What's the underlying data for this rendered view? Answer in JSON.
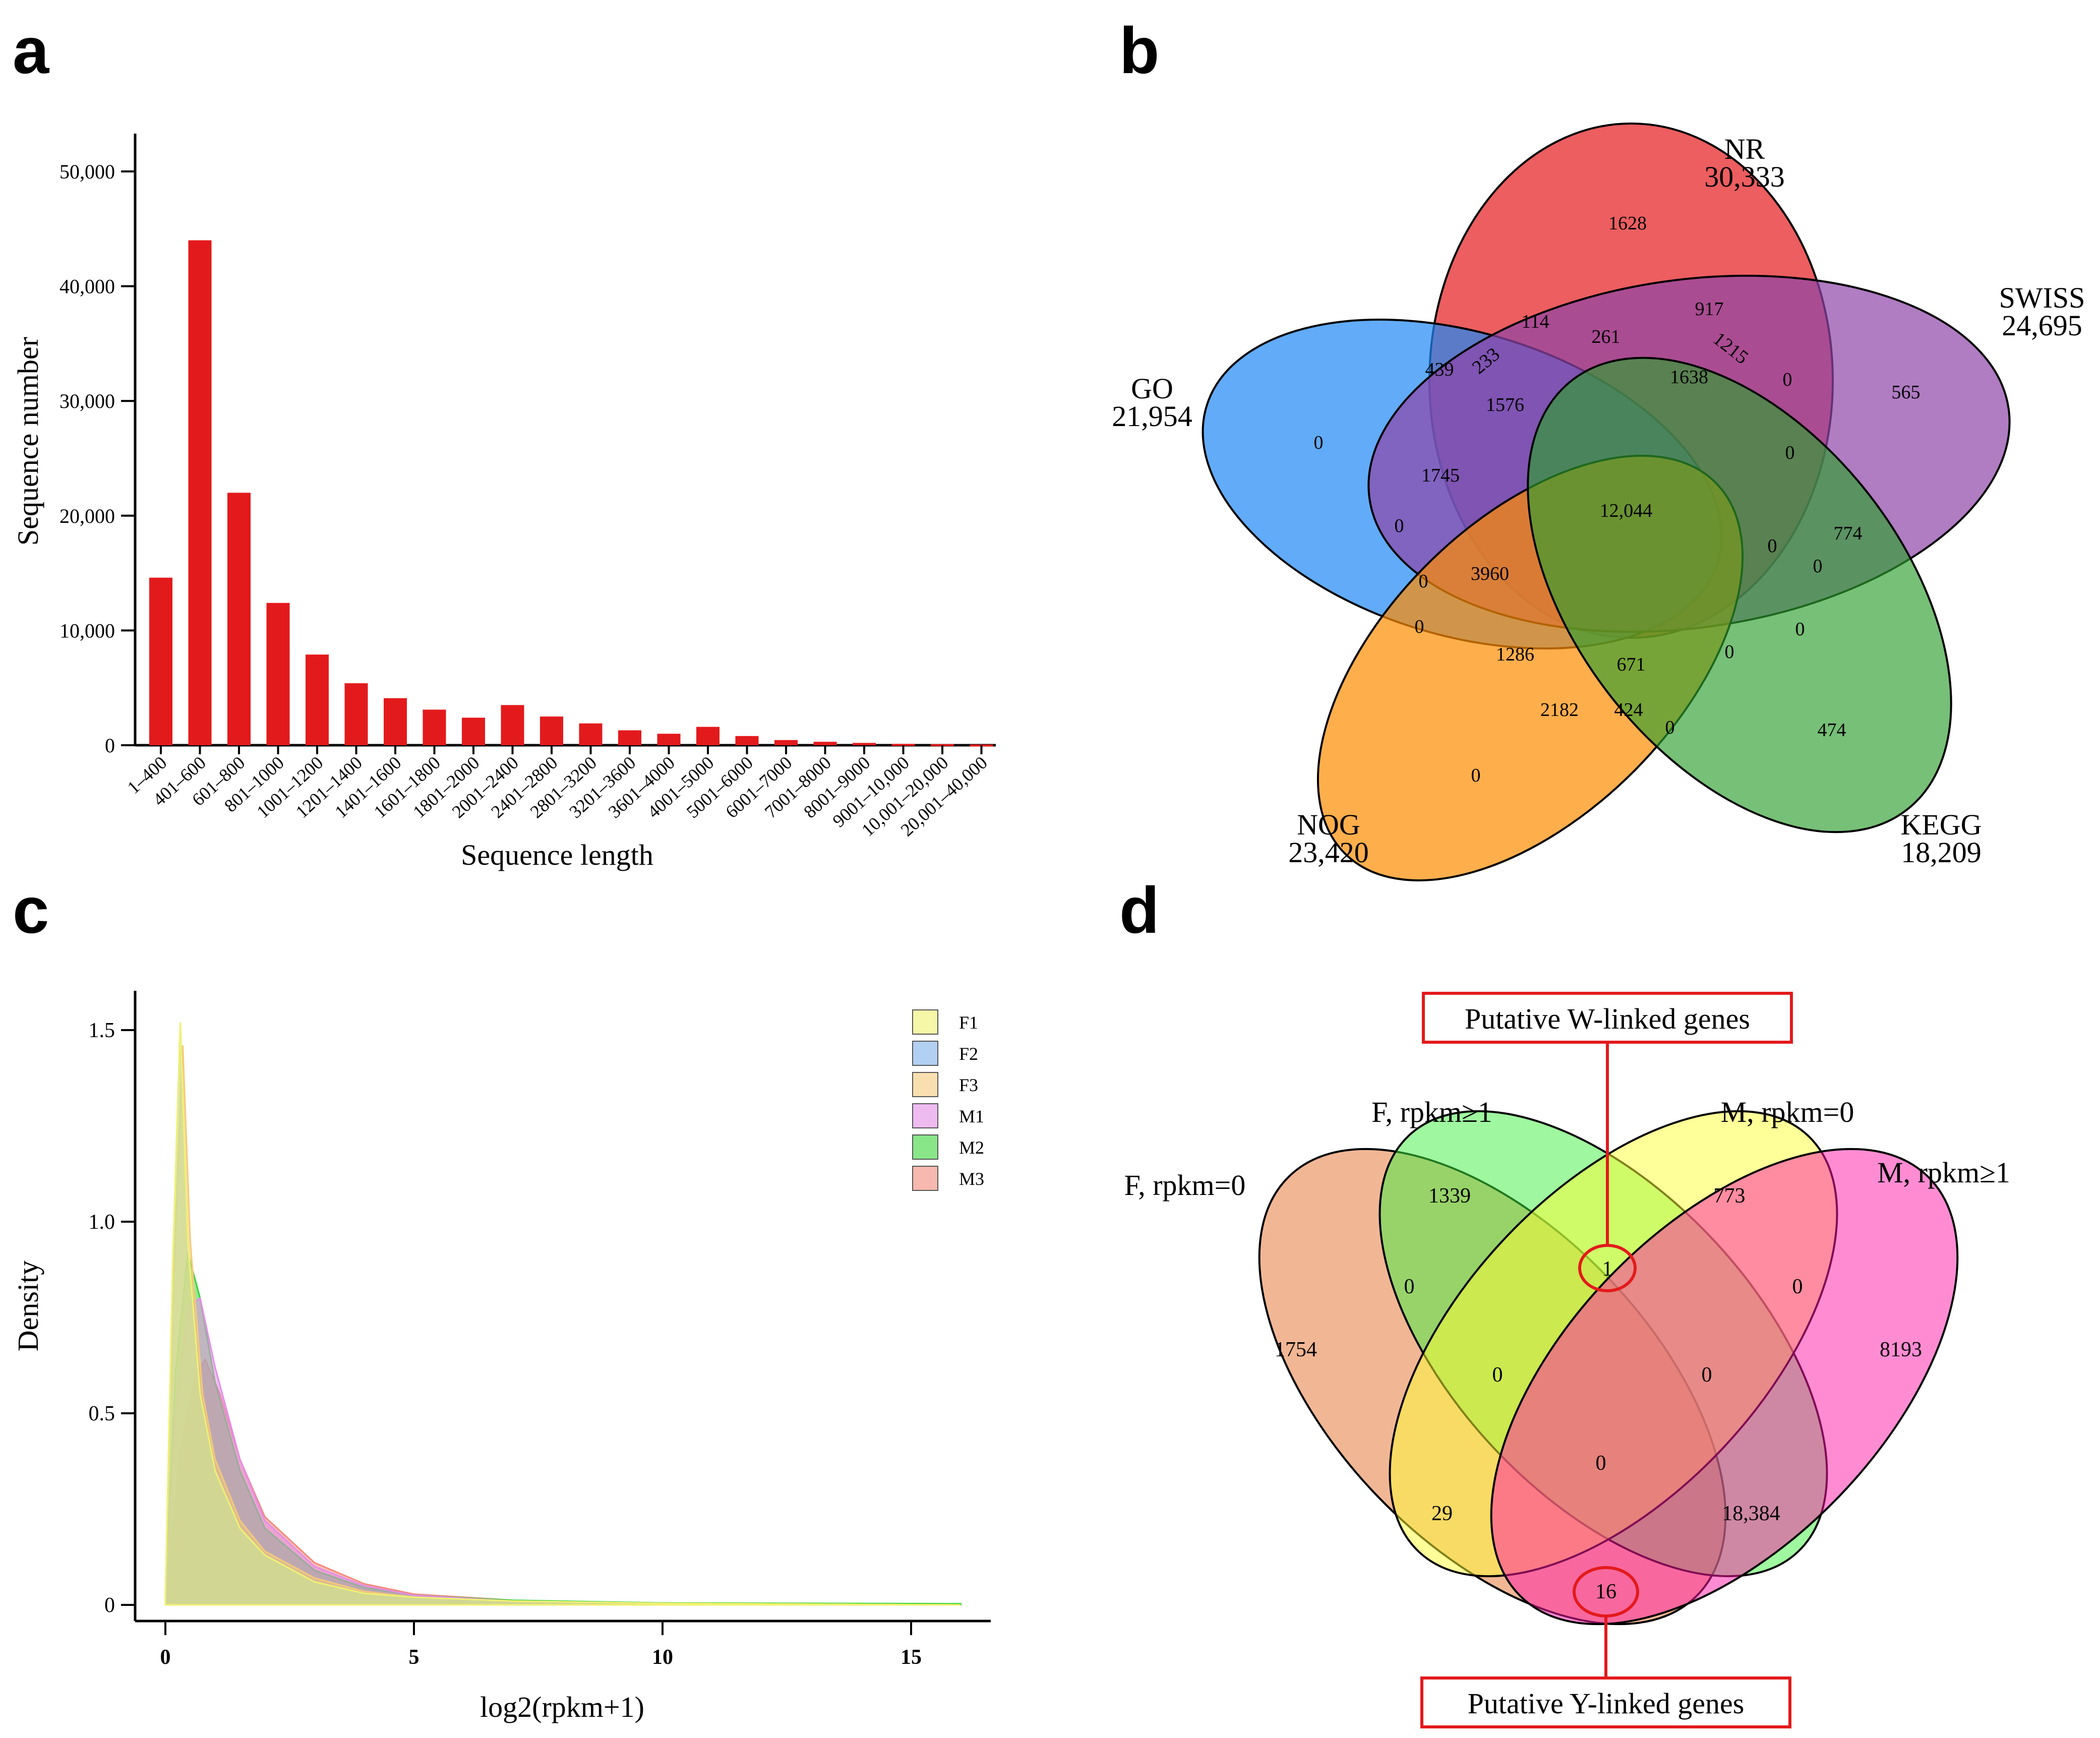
{
  "panel_letters": {
    "a": "a",
    "b": "b",
    "c": "c",
    "d": "d"
  },
  "colors": {
    "bar": "#e31a1c",
    "venn_b": {
      "nr": "#e41a1c",
      "go": "#1e88f5",
      "swiss": "#8e44a8",
      "nog": "#ff8c00",
      "kegg": "#2e9e2e"
    },
    "venn_d": {
      "f0": "#e8874f",
      "f1": "#3ff03f",
      "m0": "#ffff33",
      "m1": "#ff1aa8"
    },
    "density": {
      "F1": "#f2f26e",
      "F2": "#7fb0ea",
      "F3": "#f5c97a",
      "M1": "#e38de8",
      "M2": "#38d638",
      "M3": "#f28a7a"
    },
    "callout": "#e31a1c"
  },
  "chart_data": [
    {
      "type": "bar",
      "panel": "a",
      "xlabel": "Sequence length",
      "ylabel": "Sequence number",
      "ylim": [
        0,
        50000
      ],
      "yticks": [
        0,
        10000,
        20000,
        30000,
        40000,
        50000
      ],
      "ytick_labels": [
        "0",
        "10,000",
        "20,000",
        "30,000",
        "40,000",
        "50,000"
      ],
      "categories": [
        "1–400",
        "401–600",
        "601–800",
        "801–1000",
        "1001–1200",
        "1201–1400",
        "1401–1600",
        "1601–1800",
        "1801–2000",
        "2001–2400",
        "2401–2800",
        "2801–3200",
        "3201–3600",
        "3601–4000",
        "4001–5000",
        "5001–6000",
        "6001–7000",
        "7001–8000",
        "8001–9000",
        "9001–10,000",
        "10,001–20,000",
        "20,001–40,000"
      ],
      "values": [
        14600,
        44000,
        22000,
        12400,
        7900,
        5400,
        4100,
        3100,
        2400,
        3500,
        2500,
        1900,
        1300,
        1000,
        1600,
        800,
        450,
        300,
        200,
        120,
        100,
        60
      ]
    },
    {
      "type": "venn",
      "panel": "b",
      "sets": [
        {
          "key": "nr",
          "name": "NR",
          "total": "30,333"
        },
        {
          "key": "swiss",
          "name": "SWISS",
          "total": "24,695"
        },
        {
          "key": "go",
          "name": "GO",
          "total": "21,954"
        },
        {
          "key": "nog",
          "name": "NOG",
          "total": "23,420"
        },
        {
          "key": "kegg",
          "name": "KEGG",
          "total": "18,209"
        }
      ],
      "regions": [
        "1628",
        "917",
        "114",
        "261",
        "1215",
        "439",
        "233",
        "1638",
        "0",
        "565",
        "0",
        "1576",
        "0",
        "1745",
        "12,044",
        "0",
        "774",
        "0",
        "0",
        "3960",
        "0",
        "0",
        "0",
        "1286",
        "671",
        "0",
        "2182",
        "424",
        "0",
        "474",
        "0"
      ]
    },
    {
      "type": "area",
      "panel": "c",
      "xlabel": "log2(rpkm+1)",
      "ylabel": "Density",
      "xlim": [
        -1,
        16.5
      ],
      "ylim": [
        0,
        1.6
      ],
      "xticks": [
        0,
        5,
        10,
        15
      ],
      "yticks": [
        0,
        0.5,
        1.0,
        1.5
      ],
      "ytick_labels": [
        "0",
        "0.5",
        "1.0",
        "1.5"
      ],
      "series": [
        {
          "name": "F1",
          "peak_x": 0.3,
          "peak": 1.52,
          "points": [
            [
              0,
              0.02
            ],
            [
              0.15,
              0.9
            ],
            [
              0.3,
              1.52
            ],
            [
              0.45,
              0.95
            ],
            [
              0.7,
              0.55
            ],
            [
              1,
              0.35
            ],
            [
              1.5,
              0.2
            ],
            [
              2,
              0.13
            ],
            [
              3,
              0.06
            ],
            [
              4,
              0.03
            ],
            [
              5,
              0.02
            ],
            [
              7,
              0.01
            ],
            [
              10,
              0.004
            ],
            [
              16,
              0
            ]
          ]
        },
        {
          "name": "F2",
          "peak_x": 0.3,
          "peak": 1.52,
          "points": [
            [
              0,
              0.02
            ],
            [
              0.15,
              0.9
            ],
            [
              0.3,
              1.52
            ],
            [
              0.45,
              0.95
            ],
            [
              0.7,
              0.55
            ],
            [
              1,
              0.35
            ],
            [
              1.5,
              0.2
            ],
            [
              2,
              0.13
            ],
            [
              3,
              0.06
            ],
            [
              4,
              0.03
            ],
            [
              5,
              0.02
            ],
            [
              7,
              0.01
            ],
            [
              10,
              0.004
            ],
            [
              16,
              0
            ]
          ]
        },
        {
          "name": "F3",
          "peak_x": 0.35,
          "peak": 1.46,
          "points": [
            [
              0,
              0.02
            ],
            [
              0.15,
              0.8
            ],
            [
              0.35,
              1.46
            ],
            [
              0.5,
              0.95
            ],
            [
              0.75,
              0.55
            ],
            [
              1,
              0.38
            ],
            [
              1.5,
              0.22
            ],
            [
              2,
              0.14
            ],
            [
              3,
              0.07
            ],
            [
              4,
              0.035
            ],
            [
              5,
              0.02
            ],
            [
              7,
              0.01
            ],
            [
              10,
              0.004
            ],
            [
              16,
              0
            ]
          ]
        },
        {
          "name": "M1",
          "peak_x": 0.7,
          "peak": 0.8,
          "points": [
            [
              0,
              0.02
            ],
            [
              0.2,
              0.5
            ],
            [
              0.45,
              0.78
            ],
            [
              0.7,
              0.8
            ],
            [
              1,
              0.62
            ],
            [
              1.5,
              0.38
            ],
            [
              2,
              0.22
            ],
            [
              3,
              0.1
            ],
            [
              4,
              0.05
            ],
            [
              5,
              0.025
            ],
            [
              7,
              0.01
            ],
            [
              10,
              0.004
            ],
            [
              16,
              0
            ]
          ]
        },
        {
          "name": "M2",
          "peak_x": 0.45,
          "peak": 0.92,
          "points": [
            [
              0,
              0.02
            ],
            [
              0.2,
              0.6
            ],
            [
              0.45,
              0.92
            ],
            [
              0.7,
              0.8
            ],
            [
              1,
              0.58
            ],
            [
              1.5,
              0.35
            ],
            [
              2,
              0.2
            ],
            [
              3,
              0.09
            ],
            [
              4,
              0.045
            ],
            [
              5,
              0.025
            ],
            [
              7,
              0.012
            ],
            [
              10,
              0.005
            ],
            [
              16,
              0.003
            ]
          ]
        },
        {
          "name": "M3",
          "peak_x": 0.8,
          "peak": 0.64,
          "points": [
            [
              0,
              0.02
            ],
            [
              0.3,
              0.4
            ],
            [
              0.6,
              0.6
            ],
            [
              0.8,
              0.64
            ],
            [
              1.1,
              0.55
            ],
            [
              1.5,
              0.38
            ],
            [
              2,
              0.23
            ],
            [
              3,
              0.11
            ],
            [
              4,
              0.055
            ],
            [
              5,
              0.028
            ],
            [
              7,
              0.012
            ],
            [
              10,
              0.004
            ],
            [
              16,
              0
            ]
          ]
        }
      ]
    },
    {
      "type": "venn",
      "panel": "d",
      "sets": [
        {
          "key": "f0",
          "name": "F, rpkm=0"
        },
        {
          "key": "f1",
          "name": "F, rpkm≥1"
        },
        {
          "key": "m0",
          "name": "M, rpkm=0"
        },
        {
          "key": "m1",
          "name": "M, rpkm≥1"
        }
      ],
      "regions": [
        "1339",
        "773",
        "1",
        "1754",
        "0",
        "0",
        "8193",
        "0",
        "0",
        "0",
        "29",
        "18,384",
        "16"
      ],
      "callouts": {
        "w": "Putative W-linked genes",
        "y": "Putative Y-linked genes"
      }
    }
  ]
}
